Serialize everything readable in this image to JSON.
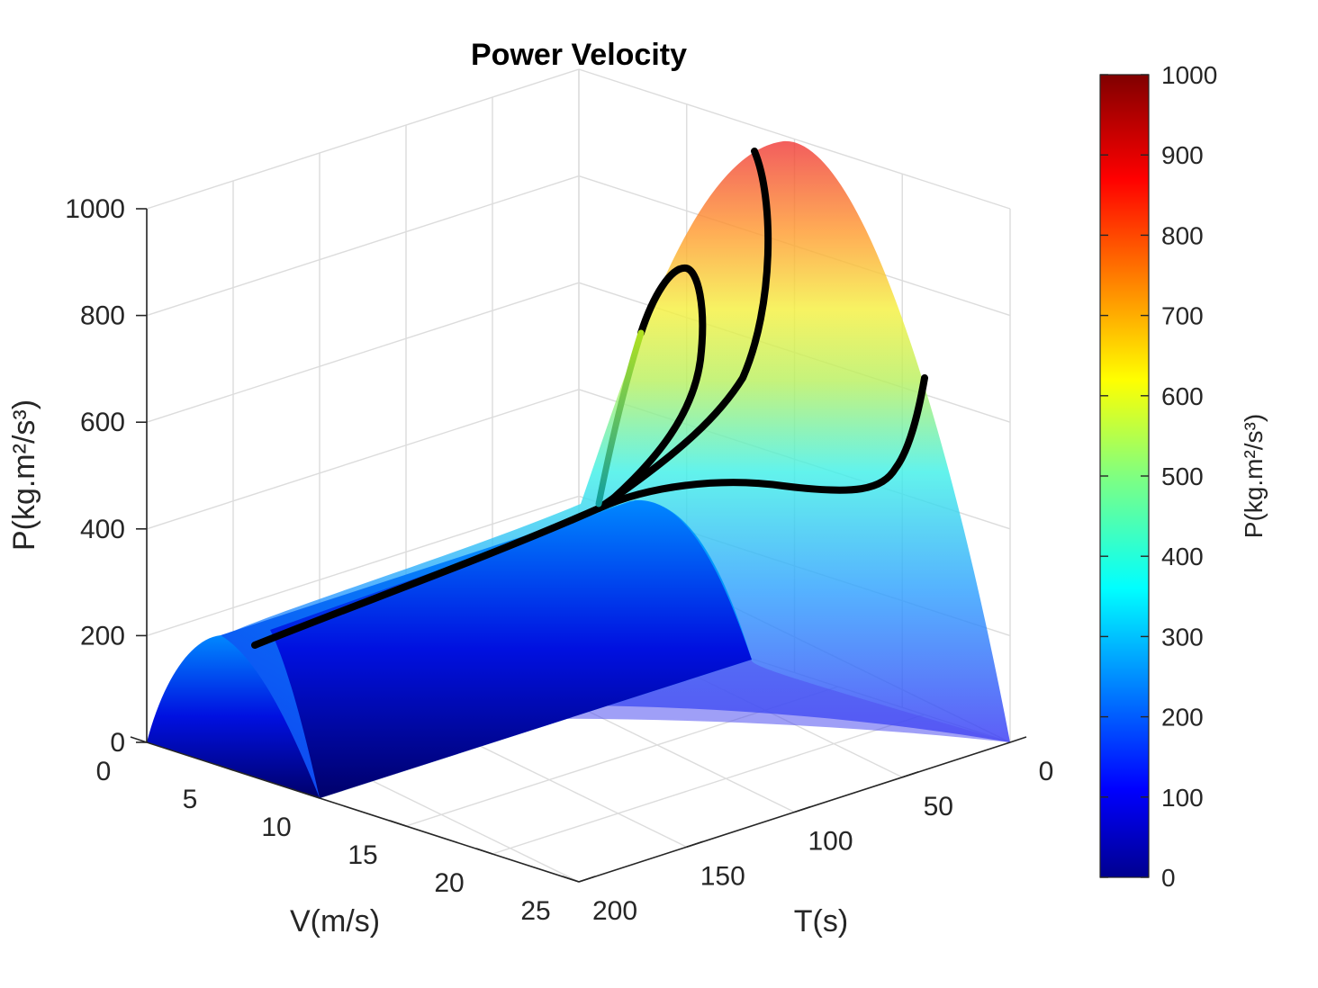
{
  "chart_data": {
    "type": "surface3d",
    "title": "Power Velocity",
    "xlabel": "V(m/s)",
    "ylabel": "T(s)",
    "zlabel": "P(kg.m²/s³)",
    "xlim": [
      0,
      25
    ],
    "ylim": [
      0,
      200
    ],
    "zlim": [
      0,
      1000
    ],
    "xticks": [
      "0",
      "5",
      "10",
      "15",
      "20",
      "25"
    ],
    "yticks": [
      "0",
      "50",
      "100",
      "150",
      "200"
    ],
    "zticks": [
      "0",
      "200",
      "400",
      "600",
      "800",
      "1000"
    ],
    "colormap": "jet",
    "grid": true,
    "colorbar": {
      "label": "P(kg.m²/s³)",
      "limits": [
        0,
        1000
      ],
      "ticks": [
        "0",
        "100",
        "200",
        "300",
        "400",
        "500",
        "600",
        "700",
        "800",
        "900",
        "1000"
      ]
    },
    "surfaces": [
      {
        "description_ref": "quadratic power ridge",
        "peak_v": 12.5,
        "peak_p_at_T0": 1000,
        "peak_p_at_T200": 200,
        "opacity": 0.7
      },
      {
        "description_ref": "sliced inner ridge",
        "v_range": [
          0,
          10
        ],
        "peak_p": 200
      }
    ],
    "curves": [
      {
        "points": [
          [
            9.5,
            200,
            180
          ],
          [
            12,
            150,
            240
          ],
          [
            14,
            120,
            320
          ],
          [
            16,
            100,
            400
          ],
          [
            19,
            80,
            470
          ],
          [
            21,
            60,
            480
          ],
          [
            23.5,
            40,
            450
          ],
          [
            25,
            20,
            700
          ]
        ]
      },
      {
        "points": [
          [
            9.5,
            200,
            180
          ],
          [
            12,
            150,
            240
          ],
          [
            14,
            120,
            320
          ],
          [
            16,
            100,
            400
          ],
          [
            14,
            70,
            600
          ],
          [
            12.5,
            50,
            950
          ]
        ]
      },
      {
        "points": [
          [
            9.5,
            200,
            180
          ],
          [
            12,
            150,
            240
          ],
          [
            14,
            120,
            320
          ],
          [
            16,
            100,
            400
          ],
          [
            14.5,
            100,
            560
          ],
          [
            11,
            120,
            750
          ],
          [
            8.5,
            130,
            610
          ],
          [
            6,
            110,
            400
          ]
        ]
      }
    ]
  }
}
